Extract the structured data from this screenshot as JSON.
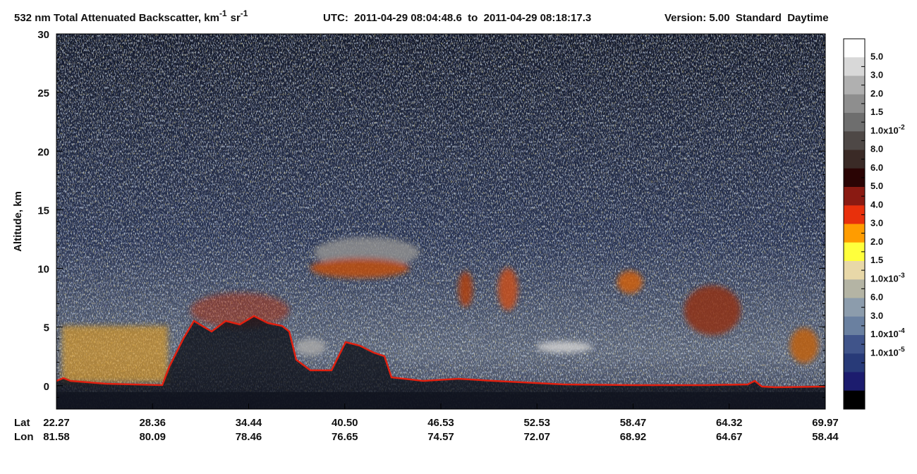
{
  "chart_data": {
    "type": "curtain",
    "title": {
      "text": "532 nm Total Attenuated Backscatter, km",
      "exp": "-1",
      "unit": "sr",
      "unit_exp": "-1"
    },
    "utc": "UTC:  2011-04-29 08:04:48.6  to  2011-04-29 08:18:17.3",
    "version": "Version: 5.00  Standard  Daytime",
    "y_label": "Altitude, km",
    "ylim": [
      -2,
      30
    ],
    "yticks": [
      0,
      5,
      10,
      15,
      20,
      25,
      30
    ],
    "x_rows": [
      "Lat",
      "Lon"
    ],
    "lat": [
      "22.27",
      "28.36",
      "34.44",
      "40.50",
      "46.53",
      "52.53",
      "58.47",
      "64.32",
      "69.97"
    ],
    "lon": [
      "81.58",
      "80.09",
      "78.46",
      "76.65",
      "74.57",
      "72.07",
      "68.92",
      "64.67",
      "58.44"
    ],
    "colorbar": {
      "colors": [
        "#ffffff",
        "#d8d8d8",
        "#b0b0b0",
        "#8e8e8e",
        "#6e6e6e",
        "#4e4846",
        "#3a2a26",
        "#2a0404",
        "#8a1a12",
        "#e8300c",
        "#ff9c00",
        "#ffff3c",
        "#e8d8a8",
        "#b4b4a4",
        "#8c9cac",
        "#6a80a0",
        "#40548a",
        "#283a78",
        "#1c1c6e",
        "#000000"
      ],
      "labels": [
        "5.0",
        "3.0",
        "2.0",
        "1.5",
        {
          "base": "1.0x10",
          "exp": "-2"
        },
        "8.0",
        "6.0",
        "5.0",
        "4.0",
        "3.0",
        "2.0",
        "1.5",
        {
          "base": "1.0x10",
          "exp": "-3"
        },
        "6.0",
        "3.0",
        {
          "base": "1.0x10",
          "exp": "-4"
        },
        {
          "base": "1.0x10",
          "exp": "-5"
        }
      ]
    }
  }
}
